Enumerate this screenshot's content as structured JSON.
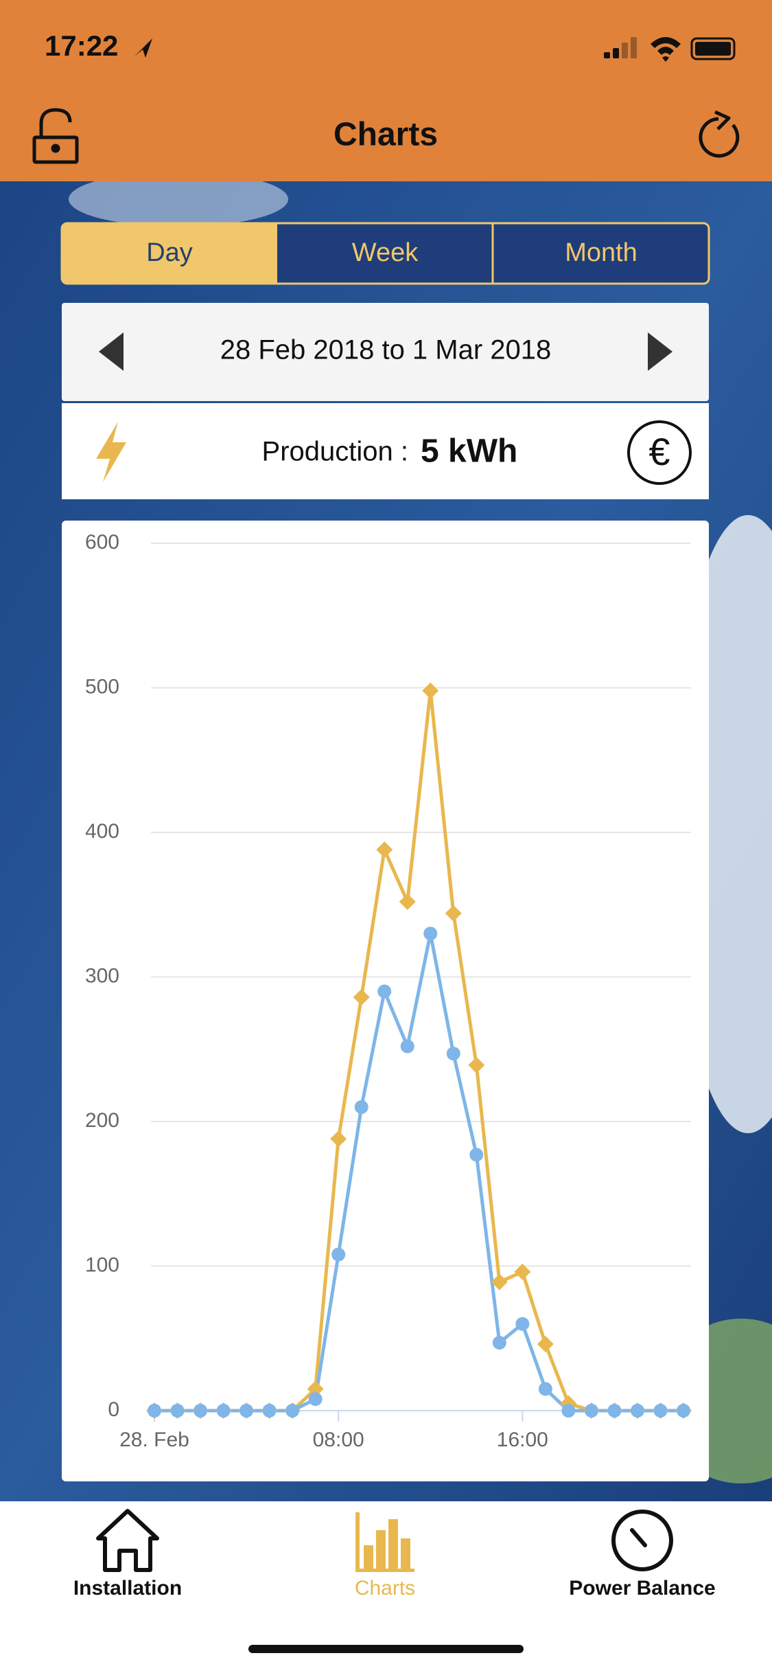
{
  "status": {
    "time": "17:22"
  },
  "header": {
    "title": "Charts"
  },
  "segments": [
    "Day",
    "Week",
    "Month"
  ],
  "date_range": "28 Feb 2018 to 1 Mar 2018",
  "production": {
    "label": "Production :",
    "value": "5 kWh",
    "currency_icon": "€"
  },
  "tabs": [
    "Installation",
    "Charts",
    "Power Balance"
  ],
  "chart_data": {
    "type": "line",
    "x": [
      0,
      1,
      2,
      3,
      4,
      5,
      6,
      7,
      8,
      9,
      10,
      11,
      12,
      13,
      14,
      15,
      16,
      17,
      18,
      19,
      20,
      21,
      22,
      23
    ],
    "xlim": [
      0,
      23
    ],
    "xticks": [
      {
        "value": 0,
        "label": "28. Feb"
      },
      {
        "value": 8,
        "label": "08:00"
      },
      {
        "value": 16,
        "label": "16:00"
      }
    ],
    "ylim": [
      0,
      600
    ],
    "yticks": [
      0,
      100,
      200,
      300,
      400,
      500,
      600
    ],
    "grid": true,
    "series": [
      {
        "color": "#e8b84e",
        "marker": "diamond",
        "values": [
          0,
          0,
          0,
          0,
          0,
          0,
          0,
          15,
          188,
          286,
          388,
          352,
          498,
          344,
          239,
          89,
          96,
          46,
          5,
          0,
          0,
          0,
          0,
          0
        ]
      },
      {
        "color": "#7fb5e8",
        "marker": "circle",
        "values": [
          0,
          0,
          0,
          0,
          0,
          0,
          0,
          8,
          108,
          210,
          290,
          252,
          330,
          247,
          177,
          47,
          60,
          15,
          0,
          0,
          0,
          0,
          0,
          0
        ]
      }
    ]
  }
}
